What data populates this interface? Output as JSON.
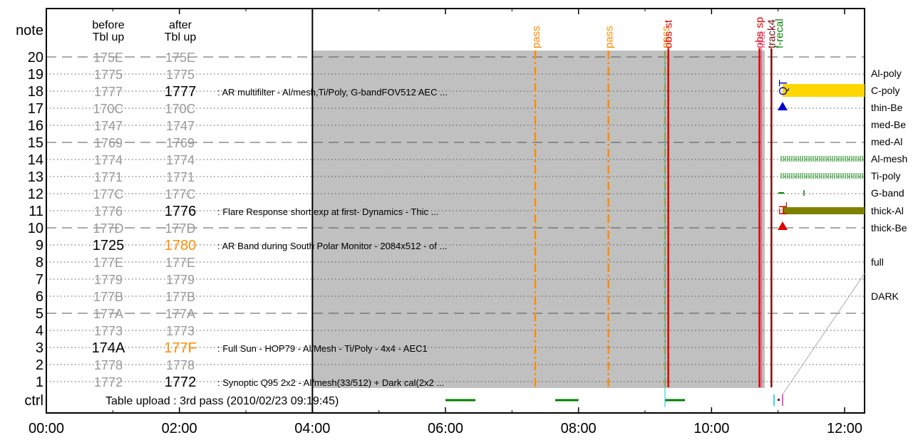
{
  "chart_data": {
    "type": "timeline",
    "x_label": "",
    "y_label": "",
    "x_ticks": [
      "00:00",
      "02:00",
      "04:00",
      "06:00",
      "08:00",
      "10:00",
      "12:00"
    ],
    "x_range_hours": [
      0,
      12.3
    ],
    "y_labels": [
      "note",
      "20",
      "19",
      "18",
      "17",
      "16",
      "15",
      "14",
      "13",
      "12",
      "11",
      "10",
      "9",
      "8",
      "7",
      "6",
      "5",
      "4",
      "3",
      "2",
      "1",
      "ctrl"
    ],
    "column_headers": {
      "before": [
        "before",
        "Tbl up"
      ],
      "after": [
        "after",
        "Tbl up"
      ]
    },
    "table_rows": [
      {
        "row": 20,
        "before": "175E",
        "after": "175E",
        "before_state": "unchanged",
        "after_state": "unchanged",
        "desc": ""
      },
      {
        "row": 19,
        "before": "1775",
        "after": "1775",
        "before_state": "unchanged",
        "after_state": "unchanged",
        "desc": ""
      },
      {
        "row": 18,
        "before": "1777",
        "after": "1777",
        "before_state": "unchanged",
        "after_state": "active",
        "desc": ": AR multifilter - Al/mesh,Ti/Poly, G-bandFOV512 AEC ..."
      },
      {
        "row": 17,
        "before": "170C",
        "after": "170C",
        "before_state": "unchanged",
        "after_state": "unchanged",
        "desc": ""
      },
      {
        "row": 16,
        "before": "1747",
        "after": "1747",
        "before_state": "unchanged",
        "after_state": "unchanged",
        "desc": ""
      },
      {
        "row": 15,
        "before": "1769",
        "after": "1769",
        "before_state": "unchanged",
        "after_state": "unchanged",
        "desc": ""
      },
      {
        "row": 14,
        "before": "1774",
        "after": "1774",
        "before_state": "unchanged",
        "after_state": "unchanged",
        "desc": ""
      },
      {
        "row": 13,
        "before": "1771",
        "after": "1771",
        "before_state": "unchanged",
        "after_state": "unchanged",
        "desc": ""
      },
      {
        "row": 12,
        "before": "177C",
        "after": "177C",
        "before_state": "unchanged",
        "after_state": "unchanged",
        "desc": ""
      },
      {
        "row": 11,
        "before": "1776",
        "after": "1776",
        "before_state": "unchanged",
        "after_state": "active",
        "desc": ": Flare Response short exp at first- Dynamics - Thic ..."
      },
      {
        "row": 10,
        "before": "177D",
        "after": "177D",
        "before_state": "unchanged",
        "after_state": "unchanged",
        "desc": ""
      },
      {
        "row": 9,
        "before": "1725",
        "after": "1780",
        "before_state": "active",
        "after_state": "new",
        "desc": ": AR Band during South Polar Monitor - 2084x512 - of ..."
      },
      {
        "row": 8,
        "before": "177E",
        "after": "177E",
        "before_state": "unchanged",
        "after_state": "unchanged",
        "desc": ""
      },
      {
        "row": 7,
        "before": "1779",
        "after": "1779",
        "before_state": "unchanged",
        "after_state": "unchanged",
        "desc": ""
      },
      {
        "row": 6,
        "before": "177B",
        "after": "177B",
        "before_state": "unchanged",
        "after_state": "unchanged",
        "desc": ""
      },
      {
        "row": 5,
        "before": "177A",
        "after": "177A",
        "before_state": "unchanged",
        "after_state": "unchanged",
        "desc": ""
      },
      {
        "row": 4,
        "before": "1773",
        "after": "1773",
        "before_state": "unchanged",
        "after_state": "unchanged",
        "desc": ""
      },
      {
        "row": 3,
        "before": "174A",
        "after": "177F",
        "before_state": "active",
        "after_state": "new",
        "desc": ": Full Sun - HOP79 - Al/Mesh - Ti/Poly - 4x4 - AEC1"
      },
      {
        "row": 2,
        "before": "1778",
        "after": "1778",
        "before_state": "unchanged",
        "after_state": "unchanged",
        "desc": ""
      },
      {
        "row": 1,
        "before": "1772",
        "after": "1772",
        "before_state": "unchanged",
        "after_state": "active",
        "desc": ": Synoptic Q95 2x2 - Al/mesh(33/512) + Dark cal(2x2 ..."
      }
    ],
    "ctrl_text": "Table upload : 3rd pass (2010/02/23 09:19:45)",
    "shaded_interval_hours": [
      4.0,
      10.8
    ],
    "pass_markers": [
      {
        "label": "pass",
        "time_hours": 7.35
      },
      {
        "label": "pass",
        "time_hours": 8.45
      },
      {
        "label": "pass",
        "time_hours": 9.3
      }
    ],
    "event_lines": [
      {
        "label": "obs st",
        "time_hours": 9.35,
        "color": "#e00000"
      },
      {
        "label": "obs sp",
        "time_hours": 10.72,
        "color": "#e00000"
      },
      {
        "label": "first",
        "time_hours": 10.75,
        "color": "#e06090"
      },
      {
        "label": "track4",
        "time_hours": 10.9,
        "color": "#7a1010"
      },
      {
        "label": "f-recal",
        "time_hours": 11.02,
        "color": "#008000"
      }
    ],
    "ctrl_bars_hours": [
      [
        6.0,
        6.45
      ],
      [
        7.65,
        8.0
      ],
      [
        9.3,
        9.6
      ]
    ],
    "filter_labels": [
      "Al-poly",
      "C-poly",
      "thin-Be",
      "med-Be",
      "med-Al",
      "Al-mesh",
      "Ti-poly",
      "G-band",
      "thick-Al",
      "thick-Be",
      "full",
      "DARK"
    ],
    "markers": [
      {
        "label": "QT",
        "row": 17,
        "color": "#0000cc"
      },
      {
        "label": "FL",
        "row": 10,
        "color": "#dd0000"
      }
    ],
    "colors": {
      "shade": "#c0c0c0",
      "pass": "#ff8c00",
      "unchanged": "#999999",
      "active": "#000000",
      "new": "#ff8c00",
      "c_poly": "#ffd700",
      "thick_al": "#808000",
      "green": "#008000"
    }
  }
}
